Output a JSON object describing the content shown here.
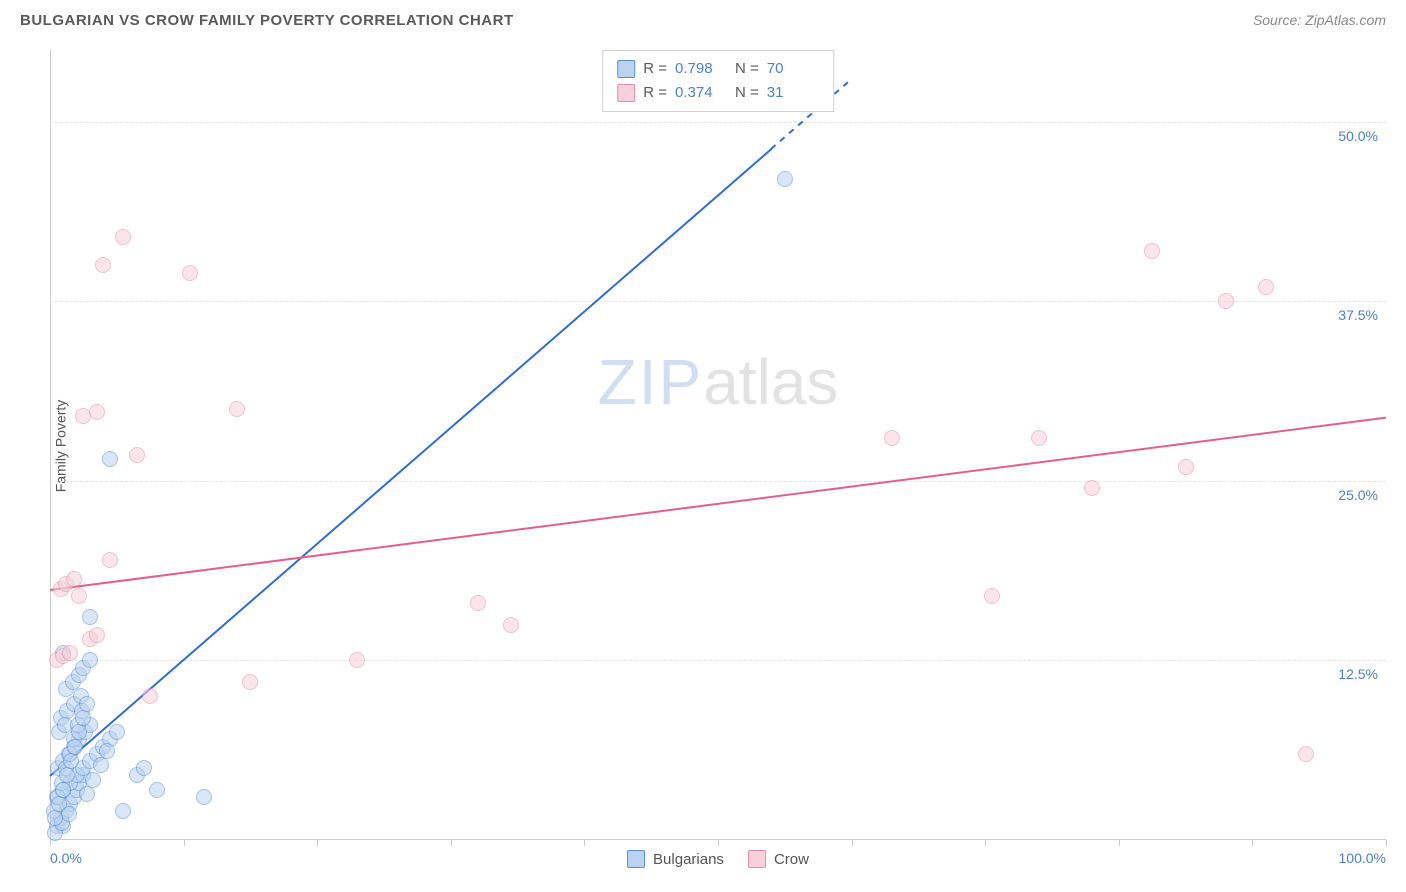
{
  "header": {
    "title": "BULGARIAN VS CROW FAMILY POVERTY CORRELATION CHART",
    "source": "Source: ZipAtlas.com"
  },
  "y_axis_label": "Family Poverty",
  "watermark": {
    "part1": "ZIP",
    "part2": "atlas"
  },
  "chart": {
    "type": "scatter",
    "xlim": [
      0,
      100
    ],
    "ylim": [
      0,
      55
    ],
    "x_tick_labels": {
      "min": "0.0%",
      "max": "100.0%"
    },
    "x_tick_positions": [
      0,
      10,
      20,
      30,
      40,
      50,
      60,
      70,
      80,
      90,
      100
    ],
    "y_grid": [
      {
        "value": 12.5,
        "label": "12.5%"
      },
      {
        "value": 25.0,
        "label": "25.0%"
      },
      {
        "value": 37.5,
        "label": "37.5%"
      },
      {
        "value": 50.0,
        "label": "50.0%"
      }
    ],
    "background_color": "#ffffff",
    "grid_color": "#e5e5e5",
    "axis_color": "#cccccc",
    "tick_label_color": "#4a7fd8",
    "point_radius": 8,
    "point_opacity": 0.55,
    "series": [
      {
        "name": "Bulgarians",
        "fill_color": "#b9d3f0",
        "stroke_color": "#5a8fd6",
        "trend_color": "#2d6cdf",
        "trend_width": 2,
        "trend": {
          "x1": 0,
          "y1": 4.5,
          "x2": 60,
          "y2": 53
        },
        "trend_dash_after_x": 54,
        "R_label": "R =",
        "R_value": "0.798",
        "N_label": "N =",
        "N_value": "70",
        "points": [
          [
            0.5,
            1.0
          ],
          [
            0.8,
            1.5
          ],
          [
            1.0,
            1.0
          ],
          [
            1.2,
            2.0
          ],
          [
            1.5,
            2.5
          ],
          [
            1.8,
            3.0
          ],
          [
            2.0,
            3.5
          ],
          [
            2.2,
            4.0
          ],
          [
            2.5,
            4.5
          ],
          [
            0.6,
            5.0
          ],
          [
            1.0,
            5.5
          ],
          [
            1.4,
            6.0
          ],
          [
            1.8,
            6.5
          ],
          [
            2.2,
            7.0
          ],
          [
            2.6,
            7.5
          ],
          [
            3.0,
            8.0
          ],
          [
            0.8,
            8.5
          ],
          [
            1.3,
            9.0
          ],
          [
            1.8,
            9.5
          ],
          [
            2.3,
            10.0
          ],
          [
            0.5,
            3.0
          ],
          [
            1.0,
            3.5
          ],
          [
            1.5,
            4.0
          ],
          [
            2.0,
            4.5
          ],
          [
            2.5,
            5.0
          ],
          [
            3.0,
            5.5
          ],
          [
            3.5,
            6.0
          ],
          [
            4.0,
            6.5
          ],
          [
            4.5,
            7.0
          ],
          [
            5.0,
            7.5
          ],
          [
            1.2,
            10.5
          ],
          [
            1.7,
            11.0
          ],
          [
            2.2,
            11.5
          ],
          [
            0.7,
            7.5
          ],
          [
            1.1,
            8.0
          ],
          [
            3.2,
            4.2
          ],
          [
            3.8,
            5.2
          ],
          [
            4.3,
            6.2
          ],
          [
            2.8,
            3.2
          ],
          [
            0.4,
            0.5
          ],
          [
            0.9,
            1.2
          ],
          [
            1.4,
            1.8
          ],
          [
            5.5,
            2.0
          ],
          [
            6.5,
            4.5
          ],
          [
            7.0,
            5.0
          ],
          [
            8.0,
            3.5
          ],
          [
            11.5,
            3.0
          ],
          [
            2.5,
            12.0
          ],
          [
            3.0,
            12.5
          ],
          [
            1.0,
            13.0
          ],
          [
            3.0,
            15.5
          ],
          [
            4.5,
            26.5
          ],
          [
            55.0,
            46.0
          ],
          [
            0.3,
            2.0
          ],
          [
            0.6,
            3.0
          ],
          [
            0.9,
            4.0
          ],
          [
            1.2,
            5.0
          ],
          [
            1.5,
            6.0
          ],
          [
            1.8,
            7.0
          ],
          [
            2.1,
            8.0
          ],
          [
            2.4,
            9.0
          ],
          [
            0.4,
            1.5
          ],
          [
            0.7,
            2.5
          ],
          [
            1.0,
            3.5
          ],
          [
            1.3,
            4.5
          ],
          [
            1.6,
            5.5
          ],
          [
            1.9,
            6.5
          ],
          [
            2.2,
            7.5
          ],
          [
            2.5,
            8.5
          ],
          [
            2.8,
            9.5
          ]
        ]
      },
      {
        "name": "Crow",
        "fill_color": "#f6d0da",
        "stroke_color": "#e38fa6",
        "trend_color": "#e85d8a",
        "trend_width": 2,
        "trend": {
          "x1": 0,
          "y1": 17.5,
          "x2": 100,
          "y2": 29.5
        },
        "R_label": "R =",
        "R_value": "0.374",
        "N_label": "N =",
        "N_value": "31",
        "points": [
          [
            0.5,
            12.5
          ],
          [
            1.0,
            12.8
          ],
          [
            1.5,
            13.0
          ],
          [
            0.8,
            17.5
          ],
          [
            1.2,
            17.8
          ],
          [
            3.0,
            14.0
          ],
          [
            3.5,
            14.3
          ],
          [
            4.0,
            40.0
          ],
          [
            5.5,
            42.0
          ],
          [
            10.5,
            39.5
          ],
          [
            2.5,
            29.5
          ],
          [
            3.5,
            29.8
          ],
          [
            14.0,
            30.0
          ],
          [
            6.5,
            26.8
          ],
          [
            4.5,
            19.5
          ],
          [
            7.5,
            10.0
          ],
          [
            15.0,
            11.0
          ],
          [
            23.0,
            12.5
          ],
          [
            32.0,
            16.5
          ],
          [
            34.5,
            15.0
          ],
          [
            63.0,
            28.0
          ],
          [
            74.0,
            28.0
          ],
          [
            70.5,
            17.0
          ],
          [
            78.0,
            24.5
          ],
          [
            85.0,
            26.0
          ],
          [
            82.5,
            41.0
          ],
          [
            88.0,
            37.5
          ],
          [
            91.0,
            38.5
          ],
          [
            94.0,
            6.0
          ],
          [
            1.8,
            18.2
          ],
          [
            2.2,
            17.0
          ]
        ]
      }
    ]
  },
  "legend_bottom": [
    {
      "label": "Bulgarians",
      "fill": "#b9d3f0",
      "stroke": "#5a8fd6"
    },
    {
      "label": "Crow",
      "fill": "#f6d0da",
      "stroke": "#e38fa6"
    }
  ]
}
